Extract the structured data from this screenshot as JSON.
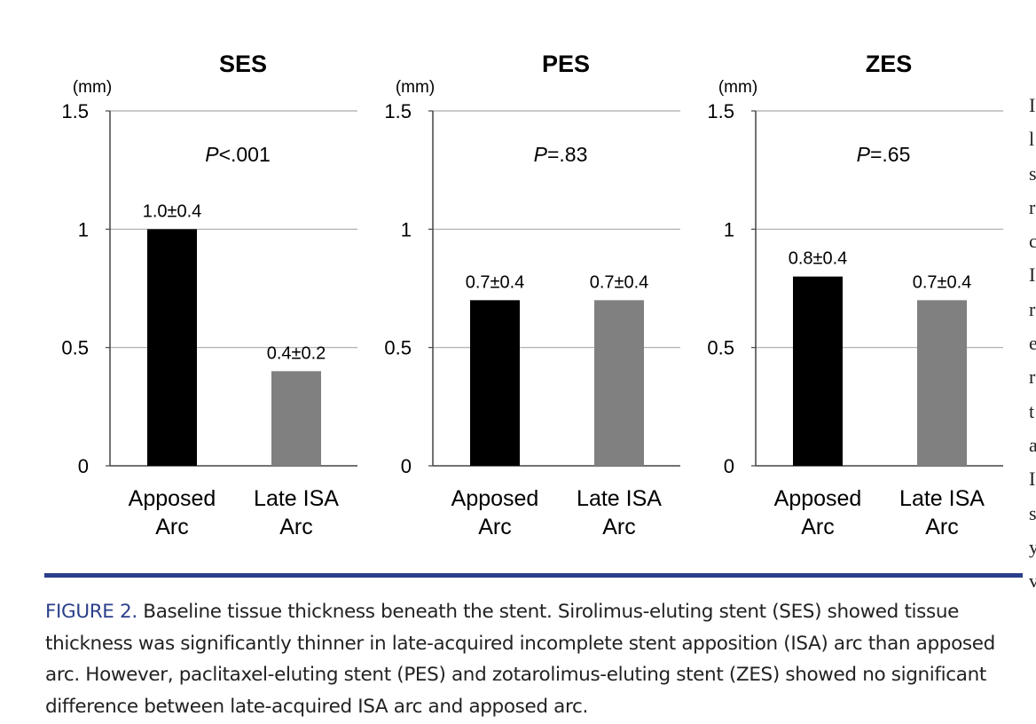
{
  "chart_data": [
    {
      "type": "bar",
      "title": "SES",
      "unit": "(mm)",
      "p_value": "P<.001",
      "categories": [
        "Apposed Arc",
        "Late ISA Arc"
      ],
      "category_lines": [
        [
          "Apposed",
          "Arc"
        ],
        [
          "Late ISA",
          "Arc"
        ]
      ],
      "values": [
        1.0,
        0.4
      ],
      "labels": [
        "1.0±0.4",
        "0.4±0.2"
      ],
      "colors": [
        "#000000",
        "#808080"
      ],
      "ylim": [
        0,
        1.5
      ],
      "yticks": [
        0,
        0.5,
        1,
        1.5
      ],
      "ytick_labels": [
        "0",
        "0.5",
        "1",
        "1.5"
      ],
      "grid": true
    },
    {
      "type": "bar",
      "title": "PES",
      "unit": "(mm)",
      "p_value": "P=.83",
      "categories": [
        "Apposed Arc",
        "Late ISA Arc"
      ],
      "category_lines": [
        [
          "Apposed",
          "Arc"
        ],
        [
          "Late ISA",
          "Arc"
        ]
      ],
      "values": [
        0.7,
        0.7
      ],
      "labels": [
        "0.7±0.4",
        "0.7±0.4"
      ],
      "colors": [
        "#000000",
        "#808080"
      ],
      "ylim": [
        0,
        1.5
      ],
      "yticks": [
        0,
        0.5,
        1,
        1.5
      ],
      "ytick_labels": [
        "0",
        "0.5",
        "1",
        "1.5"
      ],
      "grid": true
    },
    {
      "type": "bar",
      "title": "ZES",
      "unit": "(mm)",
      "p_value": "P=.65",
      "categories": [
        "Apposed Arc",
        "Late ISA Arc"
      ],
      "category_lines": [
        [
          "Apposed",
          "Arc"
        ],
        [
          "Late ISA",
          "Arc"
        ]
      ],
      "values": [
        0.8,
        0.7
      ],
      "labels": [
        "0.8±0.4",
        "0.7±0.4"
      ],
      "colors": [
        "#000000",
        "#808080"
      ],
      "ylim": [
        0,
        1.5
      ],
      "yticks": [
        0,
        0.5,
        1,
        1.5
      ],
      "ytick_labels": [
        "0",
        "0.5",
        "1",
        "1.5"
      ],
      "grid": true
    }
  ],
  "caption": {
    "figure_label": "FIGURE 2.",
    "text": " Baseline tissue thickness beneath the stent. Sirolimus-eluting stent (SES) showed tissue thickness was significantly thinner in late-acquired incomplete stent apposition (ISA) arc than apposed arc. However, paclitaxel-eluting stent (PES) and zotarolimus-eluting stent (ZES) showed no significant difference between late-acquired ISA arc and apposed arc."
  },
  "accent_color": "#2b3f8a",
  "edge_fragments": [
    "I",
    "l",
    "s",
    "r",
    "c",
    "I",
    "r",
    "e",
    "r",
    "t",
    "a",
    "I",
    "s",
    "y",
    "v"
  ]
}
